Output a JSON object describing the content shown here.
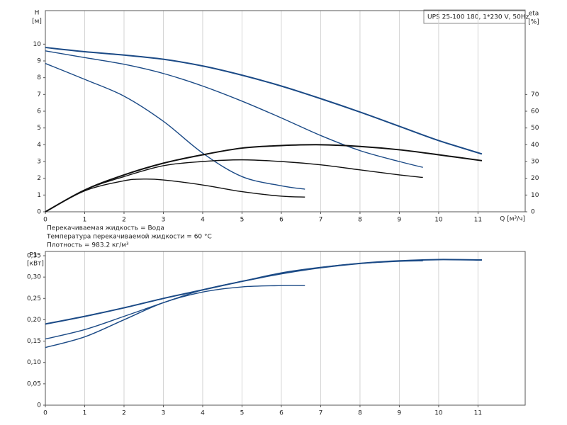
{
  "chart_data": [
    {
      "type": "line",
      "title": "UPS 25-100 180, 1*230 V, 50Hz",
      "y_label": "H",
      "y_unit": "[м]",
      "y2_label": "eta",
      "y2_unit": "[%]",
      "x_label": "Q [м³/ч]",
      "annotations": [
        "Перекачиваемая жидкость = Вода",
        "Температура перекачиваемой жидкости = 60 °C",
        "Плотность = 983.2 кг/м³"
      ],
      "xlim": [
        0,
        12.2
      ],
      "xticks": [
        0,
        1,
        2,
        3,
        4,
        5,
        6,
        7,
        8,
        9,
        10,
        11
      ],
      "ylim": [
        0,
        12
      ],
      "yticks": [
        0,
        1,
        2,
        3,
        4,
        5,
        6,
        7,
        8,
        9,
        10
      ],
      "y2lim": [
        0,
        120
      ],
      "y2ticks": [
        0,
        10,
        20,
        30,
        40,
        50,
        60,
        70
      ],
      "grid": "x",
      "series": [
        {
          "color": "#1b4a86",
          "x": [
            0,
            1,
            2,
            3,
            4,
            5,
            6,
            7,
            8,
            9,
            10,
            11.1
          ],
          "values": [
            9.8,
            9.55,
            9.35,
            9.1,
            8.7,
            8.15,
            7.5,
            6.75,
            5.95,
            5.1,
            4.25,
            3.45
          ]
        },
        {
          "color": "#1b4a86",
          "x": [
            0,
            1,
            2,
            3,
            4,
            5,
            6,
            7,
            8,
            9,
            9.6
          ],
          "values": [
            9.6,
            9.2,
            8.8,
            8.25,
            7.5,
            6.6,
            5.6,
            4.55,
            3.65,
            3.0,
            2.65
          ]
        },
        {
          "color": "#1b4a86",
          "x": [
            0,
            1,
            2,
            3,
            4,
            5,
            6,
            6.6
          ],
          "values": [
            8.85,
            7.9,
            6.9,
            5.4,
            3.5,
            2.1,
            1.55,
            1.35
          ]
        },
        {
          "color": "#111111",
          "axis": "y2",
          "x": [
            0,
            1,
            2,
            3,
            4,
            5,
            6,
            7,
            8,
            9,
            10,
            11.1
          ],
          "values": [
            0,
            13,
            22,
            29,
            34,
            38,
            39.5,
            40,
            39,
            37,
            34,
            30.5
          ]
        },
        {
          "color": "#111111",
          "axis": "y2",
          "x": [
            0,
            1,
            2,
            3,
            4,
            5,
            6,
            7,
            8,
            9,
            9.6
          ],
          "values": [
            0,
            13,
            21,
            27.5,
            30,
            31,
            30,
            28,
            25,
            22,
            20.5
          ]
        },
        {
          "color": "#111111",
          "axis": "y2",
          "x": [
            0,
            1,
            2,
            2.5,
            3,
            4,
            5,
            6,
            6.6
          ],
          "values": [
            0,
            12.5,
            18.5,
            19.5,
            19,
            16,
            12,
            9.3,
            8.8
          ]
        }
      ]
    },
    {
      "type": "line",
      "y_label": "P1",
      "y_unit": "[кВт]",
      "xlim": [
        0,
        12.2
      ],
      "xticks": [
        0,
        1,
        2,
        3,
        4,
        5,
        6,
        7,
        8,
        9,
        10,
        11
      ],
      "ylim": [
        0,
        0.36
      ],
      "yticks": [
        0,
        {
          "value": 0.05,
          "label": "0,05"
        },
        {
          "value": 0.1,
          "label": "0,10"
        },
        {
          "value": 0.15,
          "label": "0,15"
        },
        {
          "value": 0.2,
          "label": "0,20"
        },
        {
          "value": 0.25,
          "label": "0,25"
        },
        {
          "value": 0.3,
          "label": "0,30"
        },
        {
          "value": 0.35,
          "label": "0,35"
        }
      ],
      "grid": "x",
      "series": [
        {
          "color": "#1b4a86",
          "x": [
            0,
            1,
            2,
            3,
            4,
            5,
            6,
            7,
            8,
            9,
            10,
            11.1
          ],
          "values": [
            0.19,
            0.208,
            0.228,
            0.25,
            0.27,
            0.29,
            0.308,
            0.322,
            0.332,
            0.338,
            0.341,
            0.34
          ]
        },
        {
          "color": "#1b4a86",
          "x": [
            0,
            1,
            2,
            3,
            4,
            5,
            6,
            7,
            8,
            9,
            9.6
          ],
          "values": [
            0.155,
            0.177,
            0.208,
            0.24,
            0.27,
            0.29,
            0.31,
            0.323,
            0.332,
            0.337,
            0.338
          ]
        },
        {
          "color": "#1b4a86",
          "x": [
            0,
            1,
            2,
            3,
            4,
            5,
            6,
            6.6
          ],
          "values": [
            0.135,
            0.16,
            0.2,
            0.24,
            0.265,
            0.277,
            0.28,
            0.28
          ]
        }
      ]
    }
  ]
}
